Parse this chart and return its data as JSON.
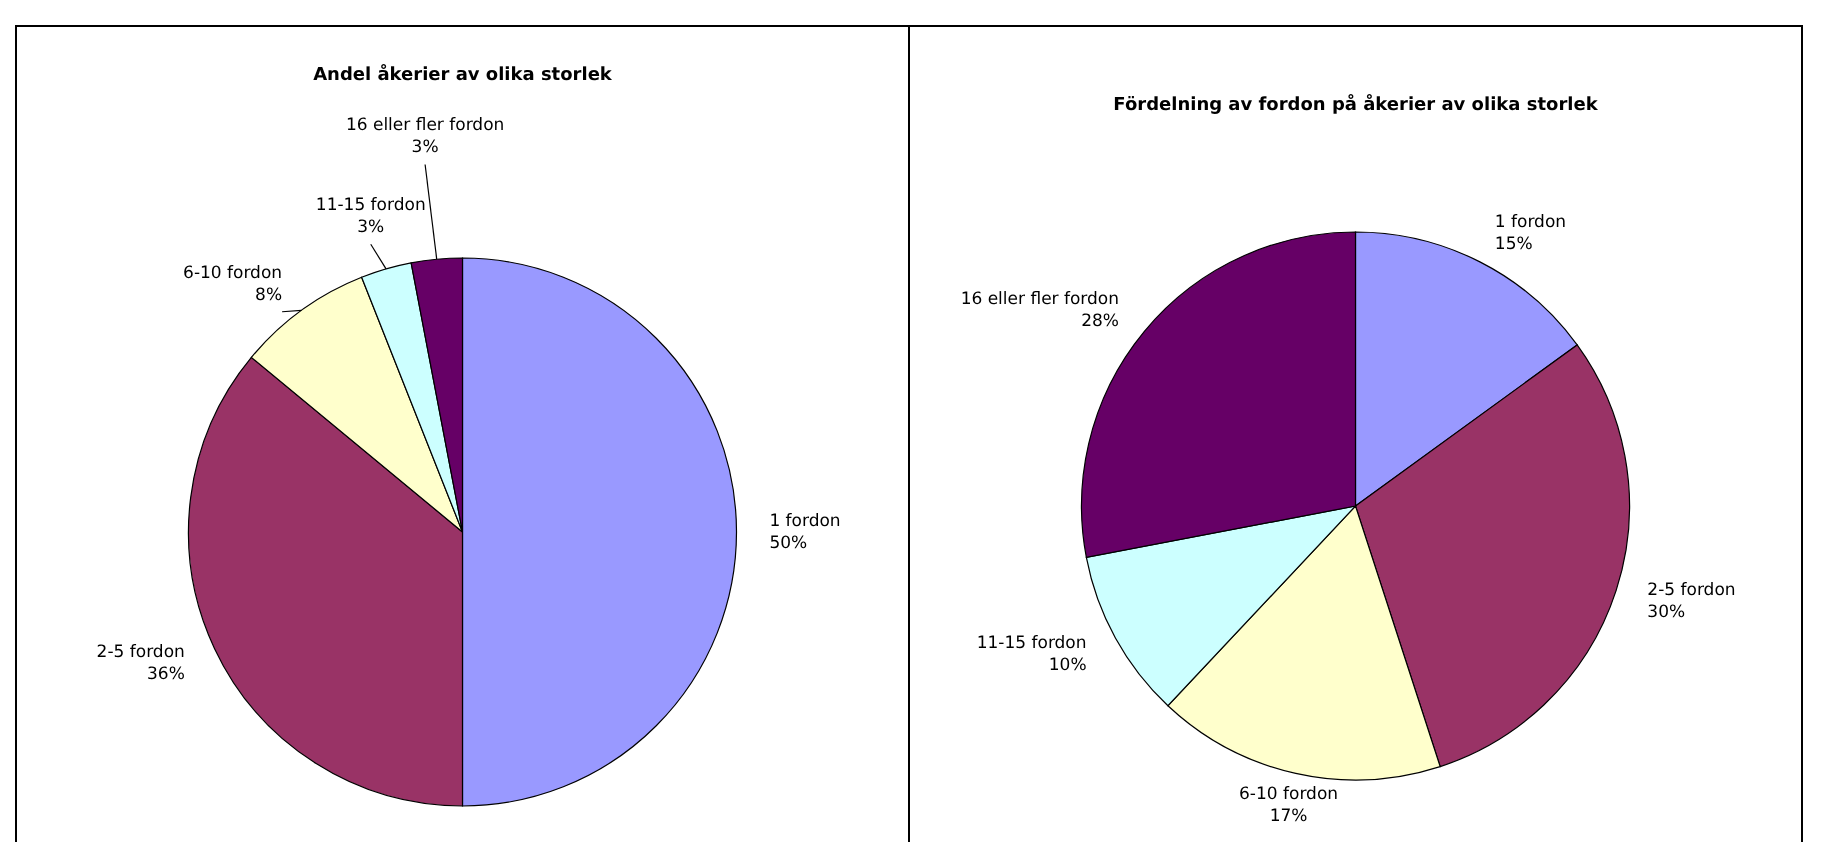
{
  "chart_data": [
    {
      "type": "pie",
      "title": "Andel åkerier av olika storlek",
      "categories": [
        "1 fordon",
        "2-5 fordon",
        "6-10 fordon",
        "11-15 fordon",
        "16 eller fler fordon"
      ],
      "values": [
        50,
        36,
        8,
        3,
        3
      ],
      "value_labels": [
        "50%",
        "36%",
        "8%",
        "3%",
        "3%"
      ],
      "colors": [
        "#9999ff",
        "#993366",
        "#ffffcc",
        "#ccffff",
        "#660066"
      ]
    },
    {
      "type": "pie",
      "title": "Fördelning av fordon på åkerier av olika storlek",
      "categories": [
        "1 fordon",
        "2-5 fordon",
        "6-10 fordon",
        "11-15 fordon",
        "16 eller fler fordon"
      ],
      "values": [
        15,
        30,
        17,
        10,
        28
      ],
      "value_labels": [
        "15%",
        "30%",
        "17%",
        "10%",
        "28%"
      ],
      "colors": [
        "#9999ff",
        "#993366",
        "#ffffcc",
        "#ccffff",
        "#660066"
      ]
    }
  ]
}
